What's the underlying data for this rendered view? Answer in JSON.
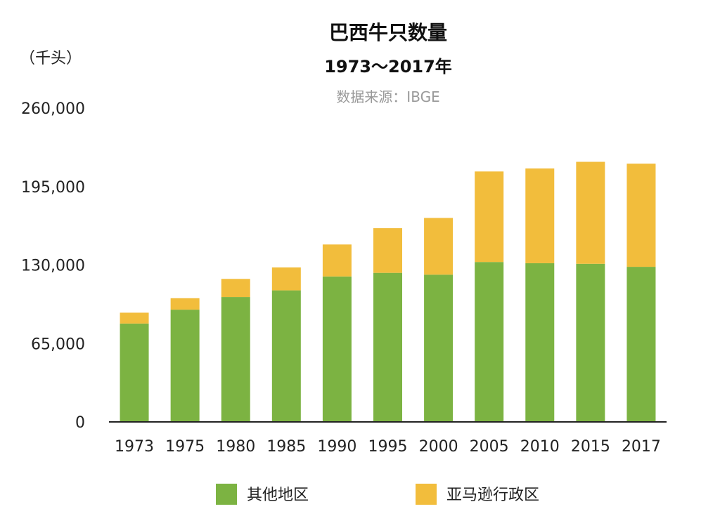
{
  "chart_data": {
    "type": "bar",
    "stacked": true,
    "title": "巴西牛只数量",
    "subtitle": "1973～2017年",
    "source": "数据来源：IBGE",
    "ylabel": "（千头）",
    "xlabel": "",
    "ylim": [
      0,
      260000
    ],
    "yticks": [
      0,
      65000,
      130000,
      195000,
      260000
    ],
    "ytick_labels": [
      "0",
      "65,000",
      "130,000",
      "195,000",
      "260,000"
    ],
    "categories": [
      "1973",
      "1975",
      "1980",
      "1985",
      "1990",
      "1995",
      "2000",
      "2005",
      "2010",
      "2015",
      "2017"
    ],
    "series": [
      {
        "name": "其他地区",
        "color": "#7cb342",
        "values": [
          81500,
          93000,
          103500,
          109000,
          120500,
          123500,
          122000,
          132500,
          131500,
          131000,
          128500
        ]
      },
      {
        "name": "亚马逊行政区",
        "color": "#f2bd3c",
        "values": [
          9000,
          9500,
          15000,
          19000,
          26500,
          37000,
          47000,
          75000,
          78500,
          84500,
          85500
        ]
      }
    ],
    "grid": false,
    "legend_position": "bottom"
  }
}
